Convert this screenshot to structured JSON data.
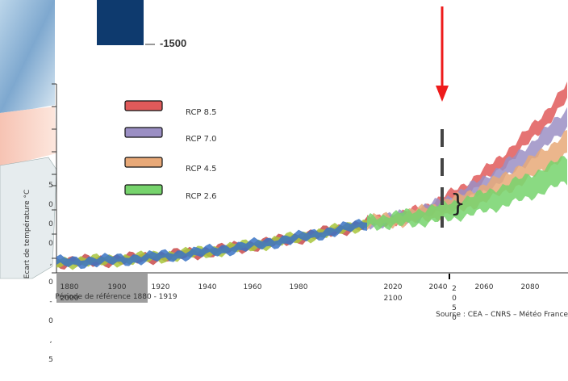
{
  "chart_data": {
    "type": "area",
    "ylabel": "Ecart de température °C",
    "y_tick_labels": [
      "5",
      "0",
      "0",
      "0",
      ",",
      "0",
      "-",
      "0",
      ",",
      "5"
    ],
    "x_ticks": [
      "1880",
      "1900",
      "1920",
      "1940",
      "1960",
      "1980",
      "2020",
      "2040",
      "2060",
      "2080"
    ],
    "x_extra_ticks": [
      "2000",
      "2100"
    ],
    "x_tick_mid": "2 0 5 0",
    "reference_period": "Période de référence 1880 - 1919",
    "source": "Source : CEA – CNRS – Météo France",
    "top_value_label": "-1500",
    "series": [
      {
        "name": "RCP 8.5",
        "color": "#e05a5a",
        "end_value": 3.8
      },
      {
        "name": "RCP 7.0",
        "color": "#9b8fc4",
        "end_value": 3.0
      },
      {
        "name": "RCP 4.5",
        "color": "#e8a978",
        "end_value": 2.2
      },
      {
        "name": "RCP 2.6",
        "color": "#76d36c",
        "end_value": 1.4
      }
    ],
    "historical_colors": [
      "#3a73c4",
      "#a8c63c",
      "#c94a4a"
    ]
  }
}
